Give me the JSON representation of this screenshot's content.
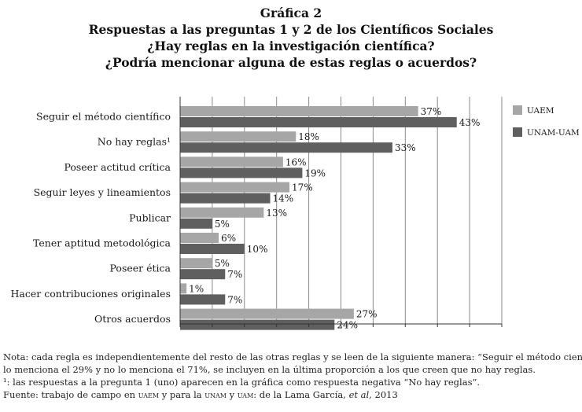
{
  "titles": {
    "line1": "Gráfica 2",
    "line2": "Respuestas a las preguntas 1 y 2 de los Científicos Sociales",
    "line3": "¿Hay reglas en la investigación científica?",
    "line4": "¿Podría mencionar alguna de estas reglas o acuerdos?"
  },
  "chart_data": {
    "type": "bar",
    "orientation": "horizontal",
    "categories": [
      "Seguir el método científico",
      "No hay reglas¹",
      "Poseer actitud crítica",
      "Seguir leyes y lineamientos",
      "Publicar",
      "Tener aptitud metodológica",
      "Poseer ética",
      "Hacer contribuciones originales",
      "Otros acuerdos"
    ],
    "series": [
      {
        "name": "UAEM",
        "color": "#a6a6a6",
        "values": [
          37,
          18,
          16,
          17,
          13,
          6,
          5,
          1,
          27
        ]
      },
      {
        "name": "UNAM-UAM",
        "color": "#5f5f5f",
        "values": [
          43,
          33,
          19,
          14,
          5,
          10,
          7,
          7,
          24
        ]
      }
    ],
    "value_suffix": "%",
    "xlim": [
      0,
      50
    ],
    "grid": true,
    "legend_position": "right"
  },
  "notes": {
    "line1": "Nota: cada regla es independientemente del resto de las otras reglas y se leen de la siguiente manera: “Seguir el método científico”",
    "line2": "lo menciona el 29% y no lo menciona el 71%, se incluyen en la última proporción a los que creen que no hay reglas.",
    "line3": "¹: las respuestas a la pregunta 1 (uno) aparecen en la gráfica como respuesta negativa “No hay reglas”.",
    "source_prefix": "Fuente: trabajo de campo en ",
    "source_uaem": "uaem",
    "source_mid": " y para la ",
    "source_unam": "unam",
    "source_y": " y ",
    "source_uam": "uam",
    "source_rest": ": de la Lama García, ",
    "source_etal": "et al,",
    "source_year": "  2013"
  }
}
